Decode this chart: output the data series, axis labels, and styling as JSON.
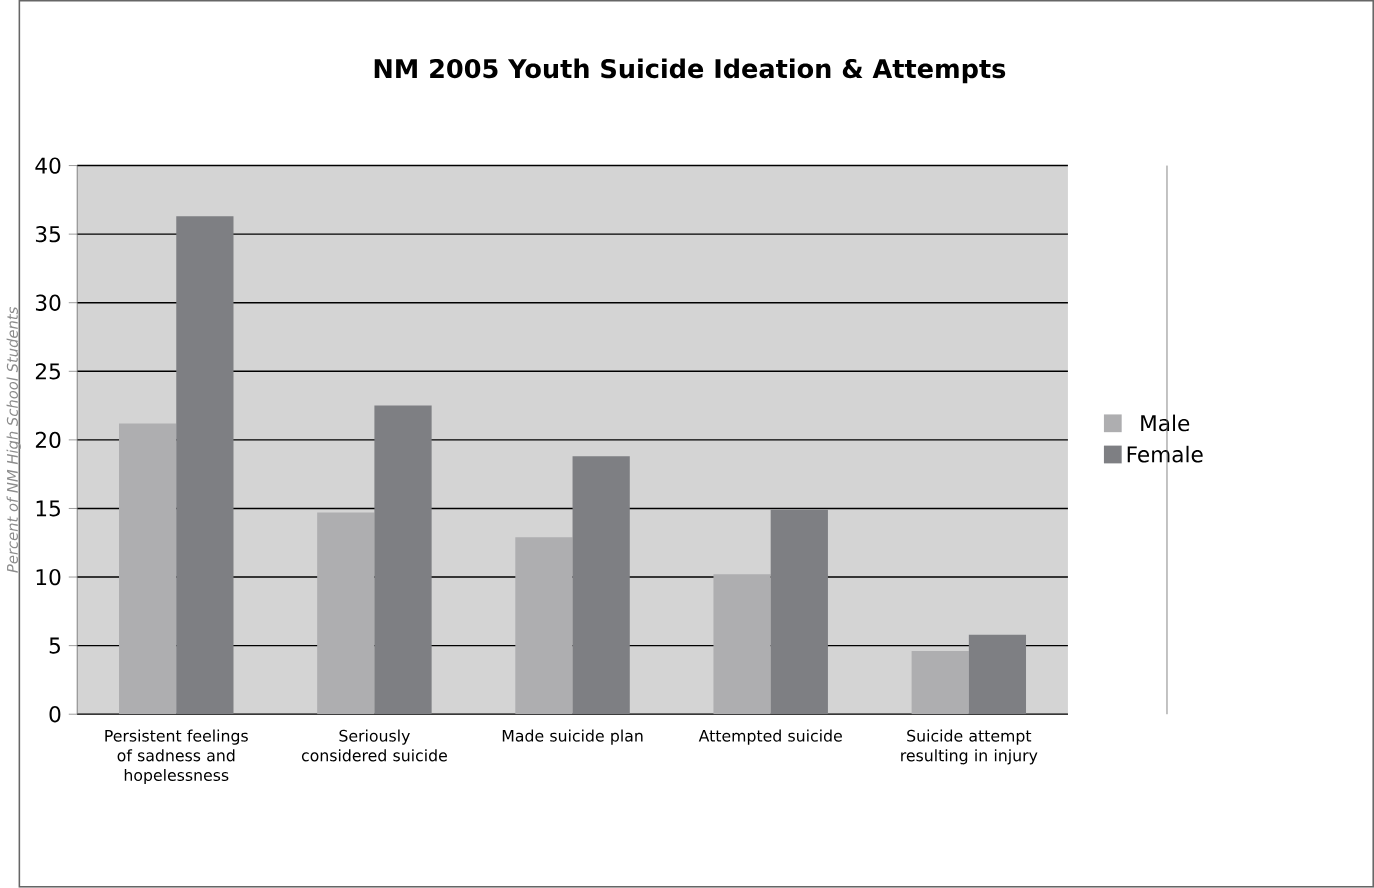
{
  "chart_data": {
    "type": "bar",
    "title": "NM 2005 Youth Suicide Ideation & Attempts",
    "ylabel": "Percent of NM High School Students",
    "categories": [
      "Persistent feelings of sadness and hopelessness",
      "Seriously considered suicide",
      "Made suicide plan",
      "Attempted suicide",
      "Suicide attempt resulting in injury"
    ],
    "series": [
      {
        "name": "Male",
        "color": "#aeaeb0",
        "values": [
          21.2,
          14.7,
          12.9,
          10.2,
          4.6
        ]
      },
      {
        "name": "Female",
        "color": "#7e7f83",
        "values": [
          36.3,
          22.5,
          18.8,
          14.9,
          5.8
        ]
      }
    ],
    "ylim": [
      0,
      40
    ],
    "yticks": [
      0,
      5,
      10,
      15,
      20,
      25,
      30,
      35,
      40
    ],
    "grid": "y",
    "legend": "right"
  }
}
